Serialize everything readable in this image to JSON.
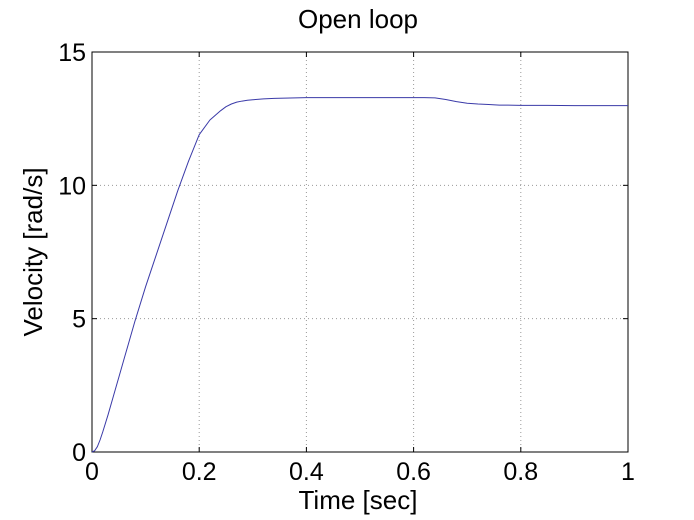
{
  "chart_data": {
    "type": "line",
    "title": "Open loop",
    "xlabel": "Time [sec]",
    "ylabel": "Velocity [rad/s]",
    "xlim": [
      0,
      1
    ],
    "ylim": [
      0,
      15
    ],
    "xticks": [
      0,
      0.2,
      0.4,
      0.6,
      0.8,
      1
    ],
    "xtick_labels": [
      "0",
      "0.2",
      "0.4",
      "0.6",
      "0.8",
      "1"
    ],
    "yticks": [
      0,
      5,
      10,
      15
    ],
    "ytick_labels": [
      "0",
      "5",
      "10",
      "15"
    ],
    "grid": true,
    "legend": "none",
    "series": [
      {
        "color": "#3a3aa8",
        "x": [
          0,
          0.005,
          0.01,
          0.015,
          0.02,
          0.03,
          0.04,
          0.05,
          0.06,
          0.08,
          0.1,
          0.12,
          0.14,
          0.16,
          0.18,
          0.2,
          0.22,
          0.24,
          0.25,
          0.26,
          0.27,
          0.28,
          0.29,
          0.3,
          0.32,
          0.34,
          0.36,
          0.38,
          0.4,
          0.45,
          0.5,
          0.55,
          0.6,
          0.62,
          0.64,
          0.66,
          0.68,
          0.7,
          0.72,
          0.74,
          0.76,
          0.8,
          0.85,
          0.9,
          0.95,
          1.0
        ],
        "y": [
          0,
          0.05,
          0.2,
          0.45,
          0.75,
          1.4,
          2.1,
          2.8,
          3.5,
          4.9,
          6.2,
          7.4,
          8.6,
          9.8,
          10.9,
          11.9,
          12.45,
          12.8,
          12.95,
          13.05,
          13.12,
          13.16,
          13.19,
          13.21,
          13.24,
          13.26,
          13.27,
          13.28,
          13.29,
          13.29,
          13.29,
          13.29,
          13.29,
          13.29,
          13.28,
          13.22,
          13.14,
          13.08,
          13.05,
          13.03,
          13.01,
          13.0,
          13.0,
          12.99,
          12.99,
          12.99
        ]
      }
    ]
  }
}
